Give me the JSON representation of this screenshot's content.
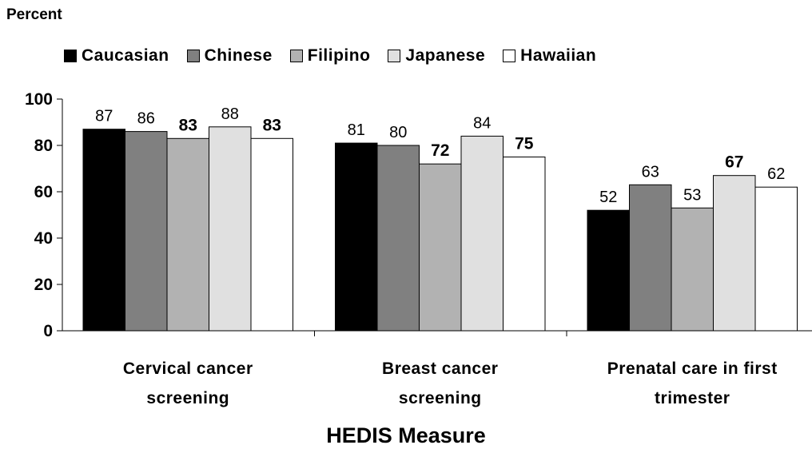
{
  "chart_data": {
    "type": "bar",
    "ylabel": "Percent",
    "xlabel": "HEDIS Measure",
    "ylim": [
      0,
      100
    ],
    "yticks": [
      "0",
      "20",
      "40",
      "60",
      "80",
      "100"
    ],
    "legend_position": "top",
    "grid": false,
    "categories": [
      [
        "Cervical cancer",
        "screening"
      ],
      [
        "Breast cancer",
        "screening"
      ],
      [
        "Prenatal care in first",
        "trimester"
      ]
    ],
    "series": [
      {
        "name": "Caucasian",
        "color": "#000000",
        "values": [
          87,
          81,
          52
        ],
        "bold_labels": [
          false,
          false,
          false
        ]
      },
      {
        "name": "Chinese",
        "color": "#808080",
        "values": [
          86,
          80,
          63
        ],
        "bold_labels": [
          false,
          false,
          false
        ]
      },
      {
        "name": "Filipino",
        "color": "#b2b2b2",
        "values": [
          83,
          72,
          53
        ],
        "bold_labels": [
          true,
          true,
          false
        ]
      },
      {
        "name": "Japanese",
        "color": "#e0e0e0",
        "values": [
          88,
          84,
          67
        ],
        "bold_labels": [
          false,
          false,
          true
        ]
      },
      {
        "name": "Hawaiian",
        "color": "#ffffff",
        "values": [
          83,
          75,
          62
        ],
        "bold_labels": [
          true,
          true,
          false
        ]
      }
    ]
  }
}
